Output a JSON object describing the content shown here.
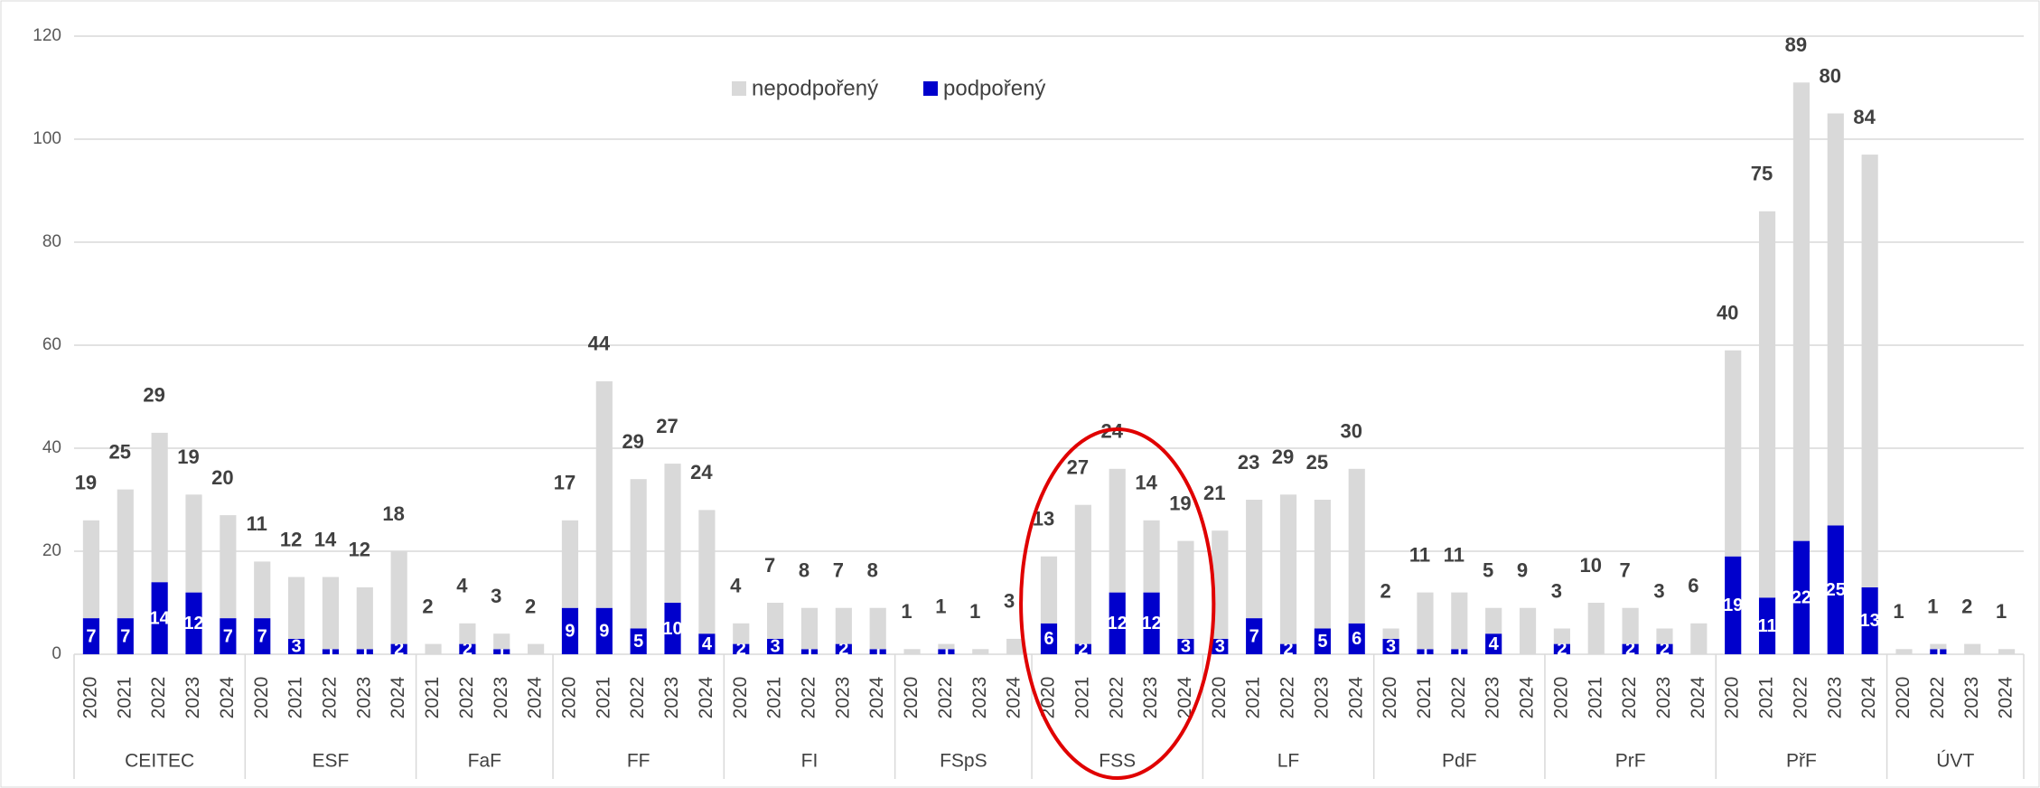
{
  "chart_data": {
    "type": "stacked_bar",
    "groups": [
      {
        "name": "CEITEC",
        "years": [
          "2020",
          "2021",
          "2022",
          "2023",
          "2024"
        ]
      },
      {
        "name": "ESF",
        "years": [
          "2020",
          "2021",
          "2022",
          "2023",
          "2024"
        ]
      },
      {
        "name": "FaF",
        "years": [
          "2021",
          "2022",
          "2023",
          "2024"
        ]
      },
      {
        "name": "FF",
        "years": [
          "2020",
          "2021",
          "2022",
          "2023",
          "2024"
        ]
      },
      {
        "name": "FI",
        "years": [
          "2020",
          "2021",
          "2022",
          "2023",
          "2024"
        ]
      },
      {
        "name": "FSpS",
        "years": [
          "2020",
          "2022",
          "2023",
          "2024"
        ]
      },
      {
        "name": "FSS",
        "years": [
          "2020",
          "2021",
          "2022",
          "2023",
          "2024"
        ]
      },
      {
        "name": "LF",
        "years": [
          "2020",
          "2021",
          "2022",
          "2023",
          "2024"
        ]
      },
      {
        "name": "PdF",
        "years": [
          "2020",
          "2021",
          "2022",
          "2023",
          "2024"
        ]
      },
      {
        "name": "PrF",
        "years": [
          "2020",
          "2021",
          "2022",
          "2023",
          "2024"
        ]
      },
      {
        "name": "PřF",
        "years": [
          "2020",
          "2021",
          "2022",
          "2023",
          "2024"
        ]
      },
      {
        "name": "ÚVT",
        "years": [
          "2020",
          "2022",
          "2023",
          "2024"
        ]
      }
    ],
    "series": [
      {
        "name": "nepodpořený",
        "color": "#d9d9d9",
        "values": [
          19,
          25,
          29,
          19,
          20,
          11,
          12,
          14,
          12,
          18,
          2,
          4,
          3,
          2,
          17,
          44,
          29,
          27,
          24,
          4,
          7,
          8,
          7,
          8,
          1,
          1,
          1,
          3,
          13,
          27,
          24,
          14,
          19,
          21,
          23,
          29,
          25,
          30,
          2,
          11,
          11,
          5,
          9,
          3,
          10,
          7,
          3,
          6,
          40,
          75,
          89,
          80,
          84,
          1,
          1,
          2,
          1
        ]
      },
      {
        "name": "podpořený",
        "color": "#0000cc",
        "values": [
          7,
          7,
          14,
          12,
          7,
          7,
          3,
          1,
          1,
          2,
          0,
          2,
          1,
          0,
          9,
          9,
          5,
          10,
          4,
          2,
          3,
          1,
          2,
          1,
          0,
          1,
          0,
          0,
          6,
          2,
          12,
          12,
          3,
          3,
          7,
          2,
          5,
          6,
          3,
          1,
          1,
          4,
          0,
          2,
          0,
          2,
          2,
          0,
          19,
          11,
          22,
          25,
          13,
          0,
          1,
          0,
          0
        ]
      }
    ],
    "ylim": [
      0,
      120
    ],
    "yticks": [
      0,
      20,
      40,
      60,
      80,
      100,
      120
    ],
    "grid": true
  }
}
